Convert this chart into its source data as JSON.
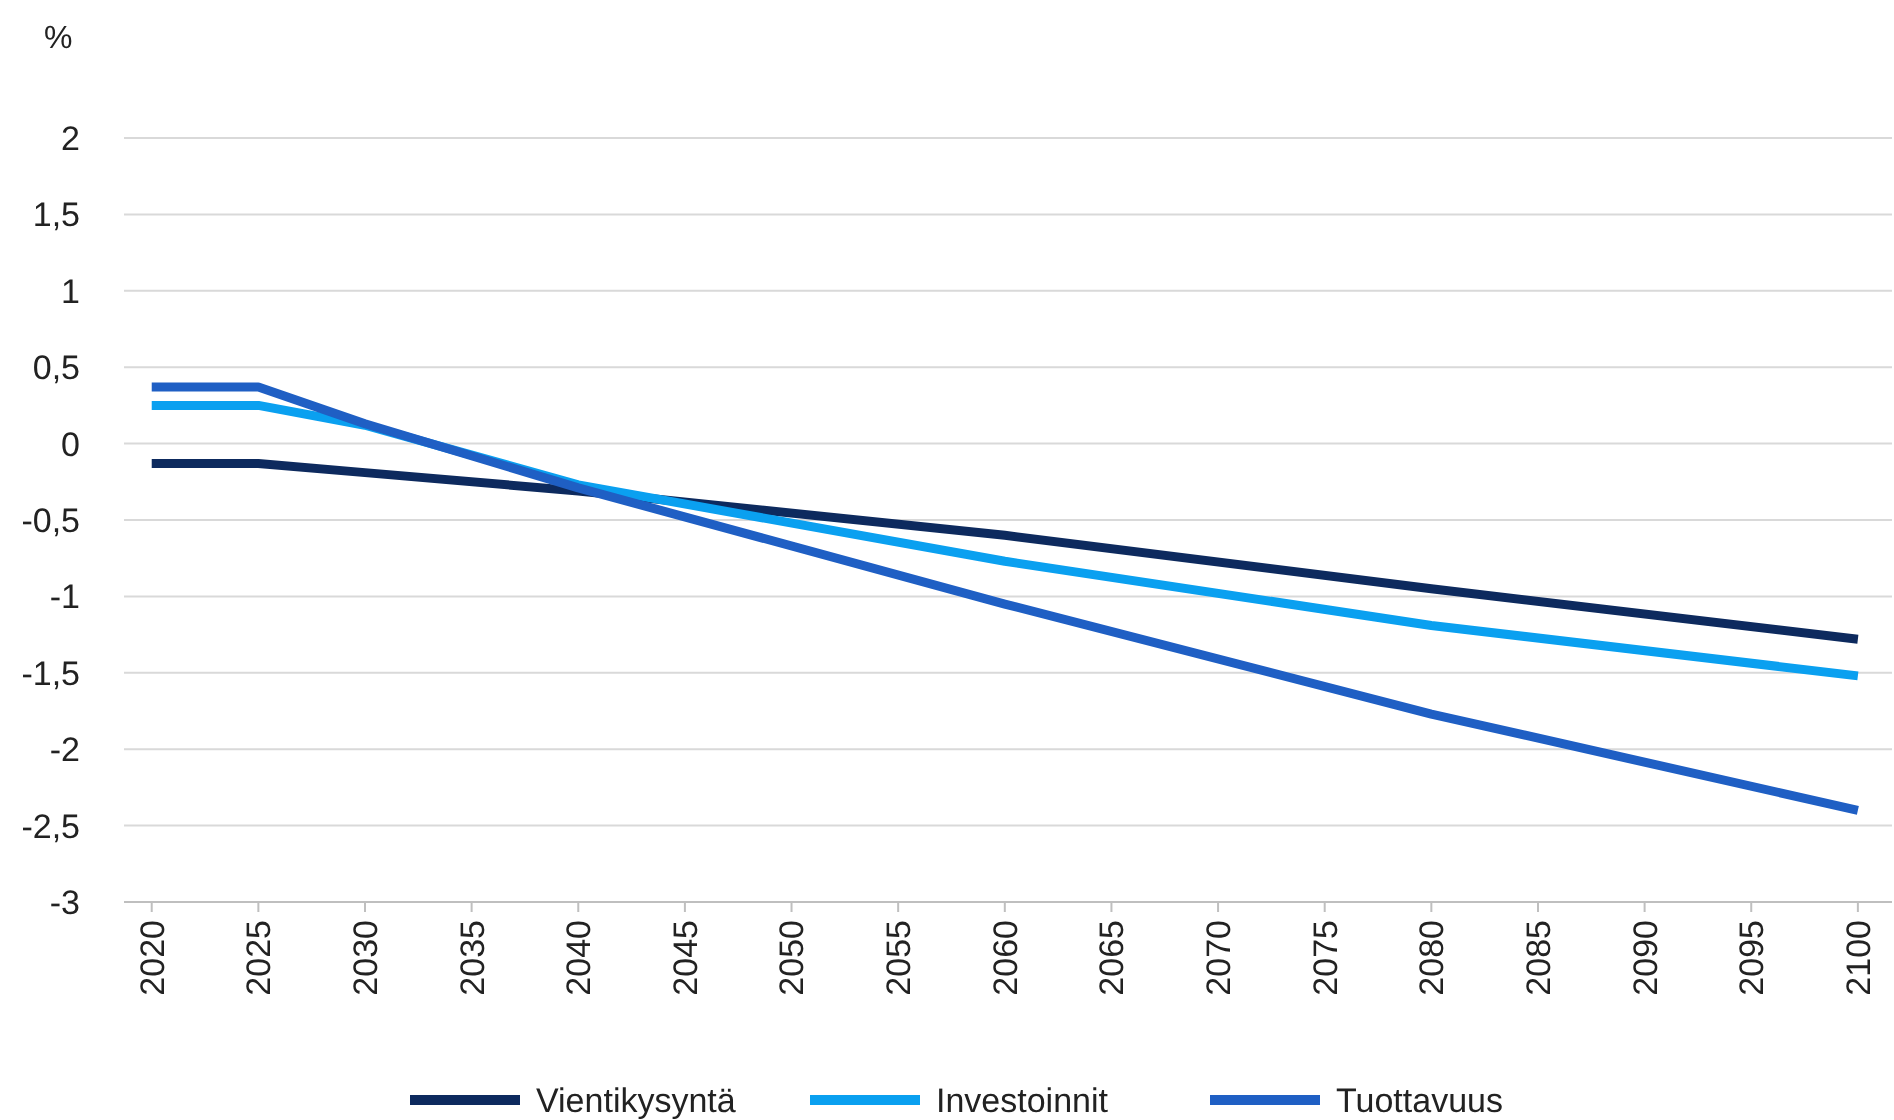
{
  "chart_data": {
    "type": "line",
    "ylabel": "%",
    "xlim": [
      2018.7,
      2101.6
    ],
    "xticks": [
      2020,
      2025,
      2030,
      2035,
      2040,
      2045,
      2050,
      2055,
      2060,
      2065,
      2070,
      2075,
      2080,
      2085,
      2090,
      2095,
      2100
    ],
    "ylim": [
      -3,
      2
    ],
    "yticks": [
      {
        "value": -3,
        "label": "-3"
      },
      {
        "value": -2.5,
        "label": "-2,5"
      },
      {
        "value": -2,
        "label": "-2"
      },
      {
        "value": -1.5,
        "label": "-1,5"
      },
      {
        "value": -1,
        "label": "-1"
      },
      {
        "value": -0.5,
        "label": "-0,5"
      },
      {
        "value": 0,
        "label": "0"
      },
      {
        "value": 0.5,
        "label": "0,5"
      },
      {
        "value": 1,
        "label": "1"
      },
      {
        "value": 1.5,
        "label": "1,5"
      },
      {
        "value": 2,
        "label": "2"
      }
    ],
    "grid": "y",
    "legend": "bottom",
    "marker": "none",
    "line_style": "solid",
    "series": [
      {
        "name": "Vientikysyntä",
        "color": "#0d2a5e",
        "x": [
          2020,
          2025,
          2030,
          2040,
          2060,
          2080,
          2100
        ],
        "values": [
          -0.13,
          -0.13,
          -0.19,
          -0.31,
          -0.6,
          -0.95,
          -1.28
        ]
      },
      {
        "name": "Investoinnit",
        "color": "#0aa0f0",
        "x": [
          2020,
          2025,
          2030,
          2040,
          2060,
          2080,
          2100
        ],
        "values": [
          0.25,
          0.25,
          0.12,
          -0.27,
          -0.77,
          -1.19,
          -1.52
        ]
      },
      {
        "name": "Tuottavuus",
        "color": "#1f5fc4",
        "x": [
          2020,
          2025,
          2030,
          2040,
          2060,
          2080,
          2100
        ],
        "values": [
          0.37,
          0.37,
          0.13,
          -0.29,
          -1.05,
          -1.77,
          -2.4
        ]
      }
    ]
  }
}
